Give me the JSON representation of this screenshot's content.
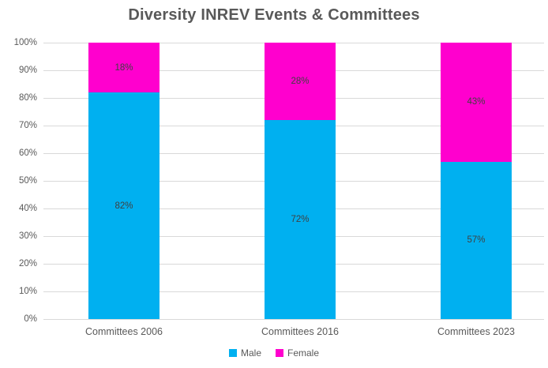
{
  "chart_data": {
    "type": "bar",
    "stacked": true,
    "title": "Diversity INREV Events & Committees",
    "categories": [
      "Committees 2006",
      "Committees 2016",
      "Committees 2023"
    ],
    "series": [
      {
        "name": "Male",
        "color": "#00B0F0",
        "values": [
          82,
          72,
          57
        ]
      },
      {
        "name": "Female",
        "color": "#FF00CE",
        "values": [
          18,
          28,
          43
        ]
      }
    ],
    "value_suffix": "%",
    "ylim": [
      0,
      100
    ],
    "yticks": [
      "0%",
      "10%",
      "20%",
      "30%",
      "40%",
      "50%",
      "60%",
      "70%",
      "80%",
      "90%",
      "100%"
    ],
    "grid": true,
    "gridline_color": "#d9d9d9",
    "data_labels": true,
    "legend_position": "bottom"
  }
}
